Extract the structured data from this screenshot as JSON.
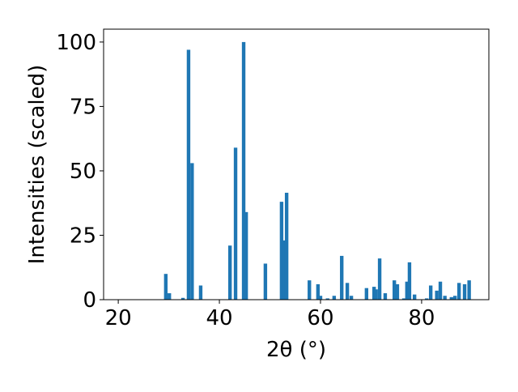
{
  "chart_data": {
    "type": "bar",
    "color": "#1f77b4",
    "x": [
      29.4,
      30.1,
      32.8,
      33.9,
      34.6,
      36.3,
      42.1,
      43.2,
      44.8,
      45.3,
      49.1,
      52.3,
      52.8,
      53.3,
      57.8,
      59.5,
      60.0,
      61.4,
      62.7,
      64.2,
      65.3,
      66.1,
      69.1,
      70.6,
      71.0,
      71.7,
      72.8,
      74.6,
      75.2,
      76.5,
      77.1,
      77.6,
      78.6,
      81.0,
      81.8,
      83.0,
      83.7,
      84.6,
      85.9,
      86.6,
      87.4,
      88.5,
      89.4
    ],
    "values": [
      10,
      2.5,
      0.7,
      97,
      53,
      5.5,
      21,
      59,
      100,
      34,
      14,
      38,
      23,
      41.5,
      7.5,
      6,
      1.5,
      0.5,
      1.5,
      17,
      6.5,
      1.5,
      4.5,
      5,
      4,
      16,
      2.5,
      7.5,
      6,
      0.5,
      7,
      14.5,
      2,
      0.5,
      5.5,
      3.5,
      7,
      1.5,
      1,
      1.5,
      6.5,
      6,
      7.5
    ],
    "xlabel": "2θ (°)",
    "ylabel": "Intensities (scaled)",
    "xlim": [
      17.1,
      93.3
    ],
    "xticks": [
      20,
      40,
      60,
      80
    ],
    "ylim": [
      0,
      105
    ],
    "yticks": [
      0,
      25,
      50,
      75,
      100
    ],
    "grid": false
  }
}
